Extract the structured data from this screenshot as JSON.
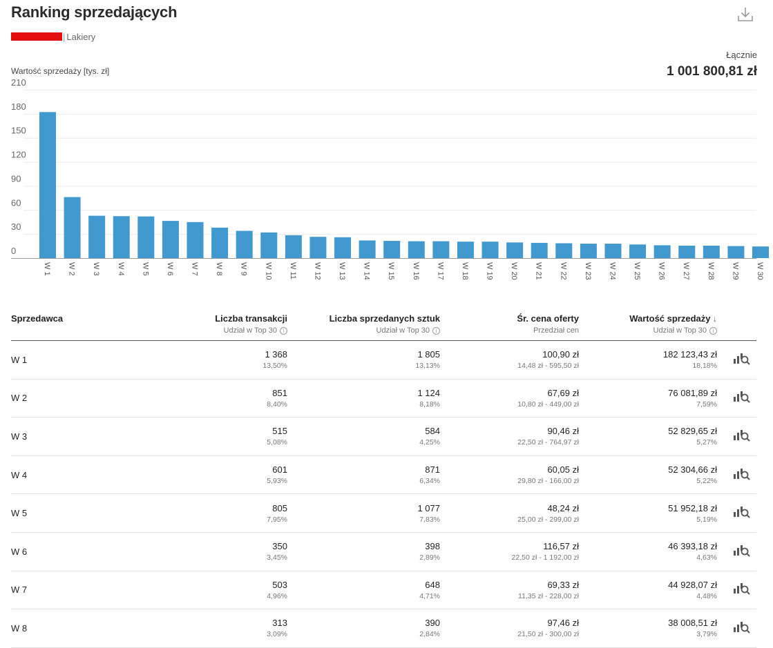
{
  "header": {
    "title": "Ranking sprzedających",
    "breadcrumb_category": "Lakiery",
    "total_label": "Łącznie",
    "total_value": "1 001 800,81 zł",
    "download_icon": "download-icon"
  },
  "chart_data": {
    "type": "bar",
    "title": "",
    "xlabel": "",
    "ylabel": "Wartość sprzedaży [tys. zł]",
    "ylim": [
      0,
      210
    ],
    "yticks": [
      "0",
      "30",
      "60",
      "90",
      "120",
      "150",
      "180",
      "210"
    ],
    "grid": true,
    "bar_color": "#4299cf",
    "categories": [
      "W 1",
      "W 2",
      "W 3",
      "W 4",
      "W 5",
      "W 6",
      "W 7",
      "W 8",
      "W 9",
      "W 10",
      "W 11",
      "W 12",
      "W 13",
      "W 14",
      "W 15",
      "W 16",
      "W 17",
      "W 18",
      "W 19",
      "W 20",
      "W 21",
      "W 22",
      "W 23",
      "W 24",
      "W 25",
      "W 26",
      "W 27",
      "W 28",
      "W 29",
      "W 30"
    ],
    "values": [
      182.12,
      76.08,
      52.83,
      52.3,
      51.95,
      46.39,
      44.93,
      38.01,
      34.0,
      32.0,
      28.5,
      26.5,
      26.0,
      22.0,
      21.5,
      21.0,
      21.0,
      20.5,
      20.5,
      19.5,
      19.0,
      18.5,
      18.0,
      18.0,
      17.0,
      16.0,
      15.5,
      15.5,
      15.0,
      14.5
    ]
  },
  "table": {
    "headers": {
      "seller": "Sprzedawca",
      "transactions": "Liczba transakcji",
      "transactions_sub": "Udział w Top 30",
      "units": "Liczba sprzedanych sztuk",
      "units_sub": "Udział w Top 30",
      "price": "Śr. cena oferty",
      "price_sub": "Przedział cen",
      "value": "Wartość sprzedaży",
      "value_sub": "Udział w Top 30",
      "info_glyph": "i",
      "sort_glyph": "↓"
    },
    "rows": [
      {
        "name": "W 1",
        "transactions": "1 368",
        "transactions_share": "13,50%",
        "units": "1 805",
        "units_share": "13,13%",
        "price": "100,90 zł",
        "price_range": "14,48 zł - 595,50 zł",
        "value": "182 123,43 zł",
        "value_share": "18,18%"
      },
      {
        "name": "W 2",
        "transactions": "851",
        "transactions_share": "8,40%",
        "units": "1 124",
        "units_share": "8,18%",
        "price": "67,69 zł",
        "price_range": "10,80 zł - 449,00 zł",
        "value": "76 081,89 zł",
        "value_share": "7,59%"
      },
      {
        "name": "W 3",
        "transactions": "515",
        "transactions_share": "5,08%",
        "units": "584",
        "units_share": "4,25%",
        "price": "90,46 zł",
        "price_range": "22,50 zł - 764,97 zł",
        "value": "52 829,65 zł",
        "value_share": "5,27%"
      },
      {
        "name": "W 4",
        "transactions": "601",
        "transactions_share": "5,93%",
        "units": "871",
        "units_share": "6,34%",
        "price": "60,05 zł",
        "price_range": "29,80 zł - 166,00 zł",
        "value": "52 304,66 zł",
        "value_share": "5,22%"
      },
      {
        "name": "W 5",
        "transactions": "805",
        "transactions_share": "7,95%",
        "units": "1 077",
        "units_share": "7,83%",
        "price": "48,24 zł",
        "price_range": "25,00 zł - 299,00 zł",
        "value": "51 952,18 zł",
        "value_share": "5,19%"
      },
      {
        "name": "W 6",
        "transactions": "350",
        "transactions_share": "3,45%",
        "units": "398",
        "units_share": "2,89%",
        "price": "116,57 zł",
        "price_range": "22,50 zł - 1 192,00 zł",
        "value": "46 393,18 zł",
        "value_share": "4,63%"
      },
      {
        "name": "W 7",
        "transactions": "503",
        "transactions_share": "4,96%",
        "units": "648",
        "units_share": "4,71%",
        "price": "69,33 zł",
        "price_range": "11,35 zł - 228,00 zł",
        "value": "44 928,07 zł",
        "value_share": "4,48%"
      },
      {
        "name": "W 8",
        "transactions": "313",
        "transactions_share": "3,09%",
        "units": "390",
        "units_share": "2,84%",
        "price": "97,46 zł",
        "price_range": "21,50 zł - 300,00 zł",
        "value": "38 008,51 zł",
        "value_share": "3,79%"
      }
    ],
    "row_action_icon": "bar-chart-search-icon"
  }
}
